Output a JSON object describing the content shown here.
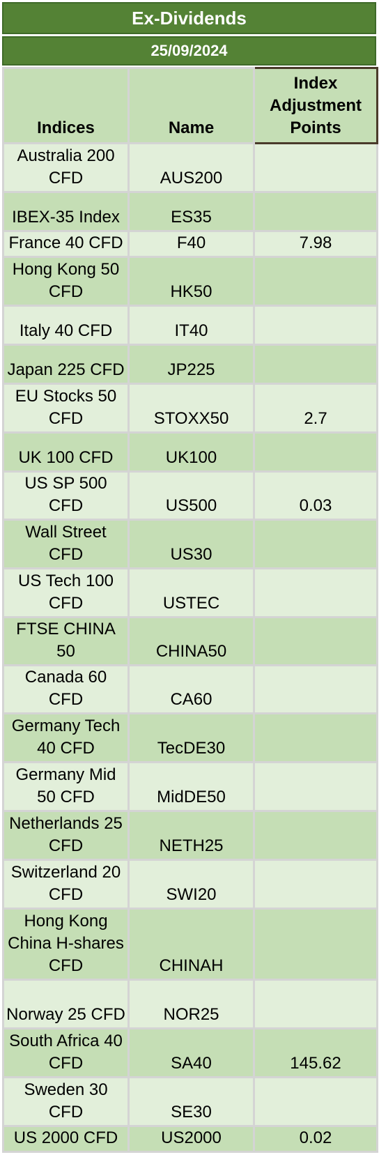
{
  "title": "Ex-Dividends",
  "date": "25/09/2024",
  "columns": [
    "Indices",
    "Name",
    "Index Adjustment Points"
  ],
  "rows": [
    {
      "index": "Australia 200 CFD",
      "name": "AUS200",
      "points": ""
    },
    {
      "index": "IBEX-35 Index",
      "name": "ES35",
      "points": ""
    },
    {
      "index": "France 40 CFD",
      "name": "F40",
      "points": "7.98"
    },
    {
      "index": "Hong Kong 50 CFD",
      "name": "HK50",
      "points": ""
    },
    {
      "index": "Italy 40 CFD",
      "name": "IT40",
      "points": ""
    },
    {
      "index": "Japan 225 CFD",
      "name": "JP225",
      "points": ""
    },
    {
      "index": "EU Stocks 50 CFD",
      "name": "STOXX50",
      "points": "2.7"
    },
    {
      "index": "UK 100 CFD",
      "name": "UK100",
      "points": ""
    },
    {
      "index": "US SP 500 CFD",
      "name": "US500",
      "points": "0.03"
    },
    {
      "index": "Wall Street CFD",
      "name": "US30",
      "points": ""
    },
    {
      "index": "US Tech 100 CFD",
      "name": "USTEC",
      "points": ""
    },
    {
      "index": "FTSE CHINA 50",
      "name": "CHINA50",
      "points": ""
    },
    {
      "index": "Canada 60 CFD",
      "name": "CA60",
      "points": ""
    },
    {
      "index": "Germany Tech 40 CFD",
      "name": "TecDE30",
      "points": ""
    },
    {
      "index": "Germany Mid 50 CFD",
      "name": "MidDE50",
      "points": ""
    },
    {
      "index": "Netherlands 25 CFD",
      "name": "NETH25",
      "points": ""
    },
    {
      "index": "Switzerland 20 CFD",
      "name": "SWI20",
      "points": ""
    },
    {
      "index": "Hong Kong China H-shares CFD",
      "name": "CHINAH",
      "points": ""
    },
    {
      "index": "Norway 25 CFD",
      "name": "NOR25",
      "points": ""
    },
    {
      "index": "South Africa 40 CFD",
      "name": "SA40",
      "points": "145.62"
    },
    {
      "index": "Sweden 30 CFD",
      "name": "SE30",
      "points": ""
    },
    {
      "index": "US 2000 CFD",
      "name": "US2000",
      "points": "0.02"
    }
  ],
  "colors": {
    "banner": "#548235",
    "row_light": "#e2efda",
    "row_dark": "#c5deb5",
    "grid": "#d4d4d4"
  }
}
